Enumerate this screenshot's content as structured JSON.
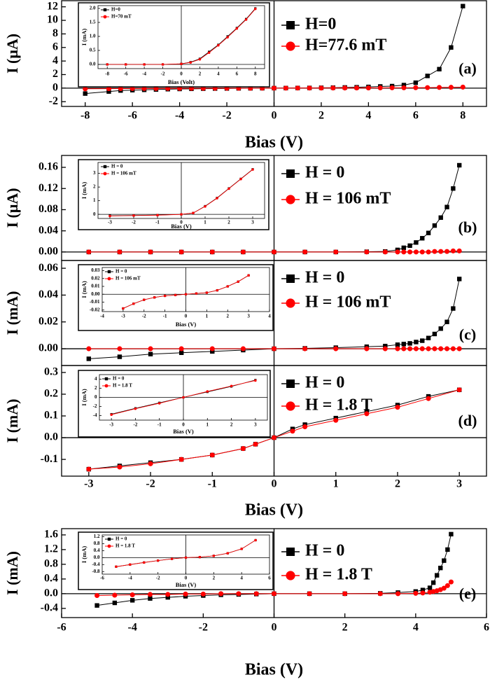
{
  "chart_data": [
    {
      "type": "line",
      "label": "(a)",
      "ylabel": "I (μA)",
      "xlabel": "Bias (V)",
      "x": [
        -8,
        -7,
        -6.5,
        -6,
        -5.5,
        -5,
        -4.5,
        -4,
        -3.5,
        -3,
        -2.5,
        -2,
        -1.5,
        -1,
        -0.5,
        0,
        0.5,
        1,
        1.5,
        2,
        2.5,
        3,
        3.5,
        4,
        4.5,
        5,
        5.5,
        6,
        6.5,
        7,
        7.5,
        8
      ],
      "series": [
        {
          "name": "H=0",
          "color": "#000000",
          "marker": "square",
          "values": [
            -0.8,
            -0.5,
            -0.35,
            -0.3,
            -0.25,
            -0.2,
            -0.15,
            -0.12,
            -0.1,
            -0.08,
            -0.06,
            -0.05,
            -0.03,
            -0.02,
            -0.01,
            0,
            0.01,
            0.02,
            0.03,
            0.05,
            0.07,
            0.1,
            0.13,
            0.18,
            0.25,
            0.3,
            0.45,
            0.8,
            1.8,
            2.8,
            6,
            12.1
          ]
        },
        {
          "name": "H=77.6 mT",
          "color": "#ff0000",
          "marker": "circle",
          "values": [
            -0.1,
            -0.08,
            -0.07,
            -0.06,
            -0.05,
            -0.05,
            -0.04,
            -0.04,
            -0.03,
            -0.03,
            -0.02,
            -0.02,
            -0.01,
            -0.01,
            0,
            0,
            0,
            0.01,
            0.01,
            0.01,
            0.02,
            0.02,
            0.03,
            0.03,
            0.04,
            0.05,
            0.05,
            0.06,
            0.08,
            0.1,
            0.12,
            0.15
          ]
        }
      ],
      "xlim": [
        -9,
        9
      ],
      "ylim": [
        -2.7,
        12.9
      ],
      "xticks": [
        -8,
        -6,
        -4,
        -2,
        0,
        2,
        4,
        6,
        8
      ],
      "yticks": [
        -2,
        0,
        2,
        4,
        6,
        8,
        10,
        12
      ],
      "inset": {
        "type": "line",
        "xlabel": "Bias (Volt)",
        "ylabel": "I (mA)",
        "x": [
          -8,
          -6,
          -4,
          -2,
          0,
          1,
          2,
          3,
          4,
          5,
          6,
          7,
          8
        ],
        "series": [
          {
            "name": "H=0",
            "color": "#000000",
            "marker": "square",
            "values": [
              0,
              0,
              0,
              0,
              0.02,
              0.08,
              0.2,
              0.45,
              0.7,
              1.0,
              1.3,
              1.62,
              2.0
            ]
          },
          {
            "name": "H=70 mT",
            "color": "#ff0000",
            "marker": "circle",
            "values": [
              0,
              0,
              0,
              0,
              0.02,
              0.07,
              0.18,
              0.42,
              0.68,
              0.97,
              1.28,
              1.6,
              1.98
            ]
          }
        ],
        "xlim": [
          -9,
          9
        ],
        "ylim": [
          -0.15,
          2.1
        ],
        "xticks": [
          -8,
          -6,
          -4,
          -2,
          0,
          2,
          4,
          6,
          8
        ],
        "yticks": [
          {
            "value": 0,
            "label": "0.0"
          },
          0.5,
          {
            "value": 1,
            "label": "1.0"
          },
          1.5,
          {
            "value": 2,
            "label": "2.0"
          }
        ]
      }
    },
    {
      "type": "line",
      "label": "(b)",
      "ylabel": "I (μA)",
      "x": [
        -3,
        -2.5,
        -2,
        -1.5,
        -1,
        -0.5,
        0,
        0.5,
        1,
        1.5,
        1.8,
        2,
        2.1,
        2.2,
        2.3,
        2.4,
        2.5,
        2.6,
        2.7,
        2.8,
        2.9,
        3
      ],
      "series": [
        {
          "name": "H = 0",
          "color": "#000000",
          "marker": "square",
          "values": [
            0,
            0,
            0,
            0,
            0,
            0,
            0,
            0,
            0,
            0.0005,
            0.001,
            0.004,
            0.008,
            0.012,
            0.018,
            0.026,
            0.036,
            0.05,
            0.065,
            0.085,
            0.12,
            0.164
          ]
        },
        {
          "name": "H = 106 mT",
          "color": "#ff0000",
          "marker": "circle",
          "values": [
            0,
            0,
            0,
            0,
            0,
            0,
            0,
            0,
            0,
            0,
            0,
            0,
            0,
            0,
            0,
            0,
            0,
            0.001,
            0.001,
            0.001,
            0.002,
            0.002
          ]
        }
      ],
      "xlim": [
        -3.44,
        3.44
      ],
      "ylim": [
        -0.016,
        0.1825
      ],
      "yticks": [
        {
          "value": 0,
          "label": "0.00"
        },
        {
          "value": 0.04,
          "label": "0.04"
        },
        {
          "value": 0.08,
          "label": "0.08"
        },
        {
          "value": 0.12,
          "label": "0.12"
        },
        {
          "value": 0.16,
          "label": "0.16"
        }
      ],
      "inset": {
        "type": "line",
        "xlabel": "Bias (V)",
        "ylabel": "I (mA)",
        "x": [
          -3,
          -2,
          -1,
          0,
          0.5,
          1,
          1.5,
          2,
          2.5,
          3
        ],
        "series": [
          {
            "name": "H = 0",
            "color": "#000000",
            "marker": "square",
            "values": [
              -0.1,
              -0.08,
              -0.05,
              0,
              0.1,
              0.6,
              1.2,
              1.9,
              2.6,
              3.3
            ]
          },
          {
            "name": "H = 106 mT",
            "color": "#ff0000",
            "marker": "circle",
            "values": [
              -0.12,
              -0.09,
              -0.06,
              0,
              0.1,
              0.58,
              1.18,
              1.88,
              2.58,
              3.28
            ]
          }
        ],
        "xlim": [
          -3.5,
          3.5
        ],
        "ylim": [
          -0.3,
          3.8
        ],
        "xticks": [
          -3,
          -2,
          -1,
          0,
          1,
          2,
          3
        ],
        "yticks": [
          0,
          1,
          2,
          3
        ]
      }
    },
    {
      "type": "line",
      "label": "(c)",
      "ylabel": "I (mA)",
      "x": [
        -3,
        -2.5,
        -2,
        -1.5,
        -1,
        -0.5,
        0,
        0.5,
        1,
        1.5,
        1.8,
        2,
        2.1,
        2.2,
        2.3,
        2.4,
        2.5,
        2.6,
        2.7,
        2.8,
        2.9,
        3
      ],
      "series": [
        {
          "name": "H = 0",
          "color": "#000000",
          "marker": "square",
          "values": [
            -0.0075,
            -0.006,
            -0.004,
            -0.003,
            -0.002,
            -0.001,
            0,
            0.0003,
            0.0008,
            0.0015,
            0.002,
            0.003,
            0.0035,
            0.004,
            0.005,
            0.006,
            0.008,
            0.011,
            0.015,
            0.02,
            0.03,
            0.052
          ]
        },
        {
          "name": "H = 106 mT",
          "color": "#ff0000",
          "marker": "circle",
          "values": [
            0,
            0,
            0,
            0,
            0,
            0,
            0,
            0,
            0,
            0,
            0,
            0,
            0,
            0,
            0,
            0,
            0,
            0,
            0,
            0,
            0,
            0
          ]
        }
      ],
      "xlim": [
        -3.44,
        3.44
      ],
      "ylim": [
        -0.0125,
        0.0658
      ],
      "yticks": [
        {
          "value": 0,
          "label": "0.00"
        },
        {
          "value": 0.02,
          "label": "0.02"
        },
        {
          "value": 0.04,
          "label": "0.04"
        },
        {
          "value": 0.06,
          "label": "0.06"
        }
      ],
      "inset": {
        "type": "line",
        "xlabel": "Bias (V)",
        "ylabel": "I (mA)",
        "x": [
          -3,
          -2.5,
          -2,
          -1.5,
          -1,
          -0.5,
          0,
          0.5,
          1,
          1.5,
          2,
          2.5,
          3
        ],
        "series": [
          {
            "name": "H = 0",
            "color": "#000000",
            "marker": "square",
            "values": [
              -0.018,
              -0.012,
              -0.007,
              -0.004,
              -0.002,
              -0.001,
              0,
              0.001,
              0.002,
              0.005,
              0.01,
              0.016,
              0.024
            ]
          },
          {
            "name": "H = 106 mT",
            "color": "#ff0000",
            "marker": "circle",
            "values": [
              -0.018,
              -0.012,
              -0.007,
              -0.004,
              -0.002,
              -0.001,
              0,
              0.001,
              0.002,
              0.005,
              0.01,
              0.016,
              0.024
            ]
          }
        ],
        "xlim": [
          -4,
          4
        ],
        "ylim": [
          -0.022,
          0.034
        ],
        "xticks": [
          -4,
          -3,
          -2,
          -1,
          0,
          1,
          2,
          3,
          4
        ],
        "yticks": [
          {
            "value": -0.02,
            "label": "-0.02"
          },
          {
            "value": -0.01,
            "label": "-0.01"
          },
          {
            "value": 0,
            "label": "0.00"
          },
          {
            "value": 0.01,
            "label": "0.01"
          },
          {
            "value": 0.02,
            "label": "0.02"
          },
          {
            "value": 0.03,
            "label": "0.03"
          }
        ]
      }
    },
    {
      "type": "line",
      "label": "(d)",
      "ylabel": "I (mA)",
      "xlabel": "Bias (V)",
      "x": [
        -3,
        -2.5,
        -2,
        -1.5,
        -1,
        -0.5,
        -0.3,
        0,
        0.3,
        0.5,
        1,
        1.5,
        2,
        2.5,
        3
      ],
      "series": [
        {
          "name": "H = 0",
          "color": "#000000",
          "marker": "square",
          "values": [
            -0.145,
            -0.13,
            -0.115,
            -0.1,
            -0.08,
            -0.05,
            -0.03,
            0,
            0.04,
            0.06,
            0.09,
            0.12,
            0.15,
            0.19,
            0.22
          ]
        },
        {
          "name": "H = 1.8 T",
          "color": "#ff0000",
          "marker": "circle",
          "values": [
            -0.145,
            -0.135,
            -0.12,
            -0.1,
            -0.08,
            -0.05,
            -0.03,
            0,
            0.03,
            0.05,
            0.08,
            0.11,
            0.14,
            0.18,
            0.22
          ]
        }
      ],
      "xlim": [
        -3.44,
        3.44
      ],
      "ylim": [
        -0.177,
        0.332
      ],
      "xticks": [
        -3,
        -2,
        -1,
        0,
        1,
        2,
        3
      ],
      "yticks": [
        -0.1,
        {
          "value": 0,
          "label": "0.0"
        },
        0.1,
        0.2,
        0.3
      ],
      "inset": {
        "type": "line",
        "xlabel": "Bias (V)",
        "ylabel": "I (mA)",
        "x": [
          -3,
          -2,
          -1,
          0,
          1,
          2,
          3
        ],
        "series": [
          {
            "name": "H = 0",
            "color": "#000000",
            "marker": "square",
            "values": [
              -3.7,
              -2.4,
              -1.2,
              0,
              1.2,
              2.4,
              3.8
            ]
          },
          {
            "name": "H = 1.8 T",
            "color": "#ff0000",
            "marker": "circle",
            "values": [
              -3.8,
              -2.5,
              -1.3,
              0,
              1.3,
              2.5,
              3.7
            ]
          }
        ],
        "xlim": [
          -3.5,
          3.5
        ],
        "ylim": [
          -5,
          5
        ],
        "xticks": [
          -3,
          -2,
          -1,
          0,
          1,
          2,
          3
        ],
        "yticks": [
          -4,
          -2,
          0,
          2,
          4
        ]
      }
    },
    {
      "type": "line",
      "label": "(e)",
      "ylabel": "I (mA)",
      "xlabel": "Bias (V)",
      "x": [
        -5,
        -4.5,
        -4,
        -3.5,
        -3,
        -2.5,
        -2,
        -1.5,
        -1,
        -0.5,
        0,
        1,
        2,
        3,
        3.5,
        4,
        4.2,
        4.4,
        4.5,
        4.6,
        4.7,
        4.8,
        4.9,
        5
      ],
      "series": [
        {
          "name": "H = 0",
          "color": "#000000",
          "marker": "square",
          "values": [
            -0.32,
            -0.25,
            -0.18,
            -0.13,
            -0.1,
            -0.07,
            -0.05,
            -0.03,
            -0.02,
            -0.01,
            0,
            0,
            0,
            0.01,
            0.03,
            0.06,
            0.1,
            0.16,
            0.3,
            0.5,
            0.7,
            0.9,
            1.2,
            1.62
          ]
        },
        {
          "name": "H = 1.8 T",
          "color": "#ff0000",
          "marker": "circle",
          "values": [
            -0.05,
            -0.04,
            -0.03,
            -0.02,
            -0.02,
            -0.01,
            -0.01,
            0,
            0,
            0,
            0,
            0,
            0,
            0,
            0,
            0.01,
            0.02,
            0.04,
            0.06,
            0.08,
            0.11,
            0.15,
            0.22,
            0.32
          ]
        }
      ],
      "xlim": [
        -6,
        6
      ],
      "ylim": [
        -0.65,
        1.77
      ],
      "xticks": [
        -6,
        -4,
        -2,
        0,
        2,
        4,
        6
      ],
      "yticks": [
        -0.4,
        {
          "value": 0,
          "label": "0.0"
        },
        0.4,
        0.8,
        1.2,
        1.6
      ],
      "inset": {
        "type": "line",
        "xlabel": "Bias (V)",
        "ylabel": "I (mA)",
        "x": [
          -5,
          -4,
          -3,
          -2,
          -1,
          0,
          1,
          2,
          3,
          4,
          5
        ],
        "series": [
          {
            "name": "H = 0",
            "color": "#000000",
            "marker": "square",
            "values": [
              -0.52,
              -0.4,
              -0.28,
              -0.17,
              -0.07,
              0,
              0.03,
              0.1,
              0.25,
              0.5,
              1.0
            ]
          },
          {
            "name": "H = 1.8 T",
            "color": "#ff0000",
            "marker": "circle",
            "values": [
              -0.52,
              -0.4,
              -0.28,
              -0.17,
              -0.07,
              0,
              0.03,
              0.1,
              0.25,
              0.5,
              1.0
            ]
          }
        ],
        "xlim": [
          -6,
          6
        ],
        "ylim": [
          -0.95,
          1.3
        ],
        "xticks": [
          -6,
          -4,
          -2,
          0,
          2,
          4,
          6
        ],
        "yticks": [
          -0.8,
          -0.4,
          {
            "value": 0,
            "label": "0.0"
          },
          0.4,
          0.8,
          1.2
        ]
      }
    }
  ]
}
